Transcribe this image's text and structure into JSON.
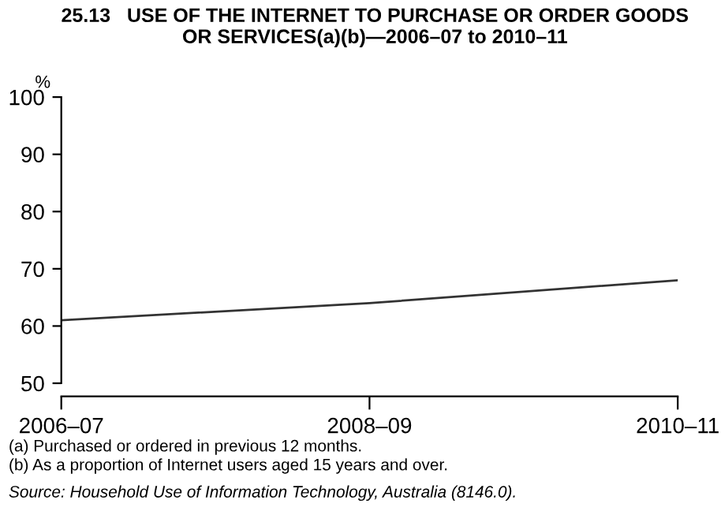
{
  "chart_data": {
    "type": "line",
    "title": "25.13   USE OF THE INTERNET TO PURCHASE OR ORDER GOODS\nOR SERVICES(a)(b)—2006–07 to 2010–11",
    "ylabel": "%",
    "categories": [
      "2006–07",
      "2008–09",
      "2010–11"
    ],
    "series": [
      {
        "color": "#333333",
        "values": [
          61,
          64,
          68
        ]
      }
    ],
    "ylim": [
      50,
      100
    ],
    "yticks": [
      50,
      60,
      70,
      80,
      90,
      100
    ],
    "grid": false,
    "legend": false,
    "marker": "none",
    "line_style": "solid",
    "annotations": [
      "(a) Purchased or ordered in previous 12 months.",
      "(b) As a proportion of Internet users aged 15 years and over.",
      "Source: Household Use of Information Technology, Australia (8146.0)."
    ]
  }
}
